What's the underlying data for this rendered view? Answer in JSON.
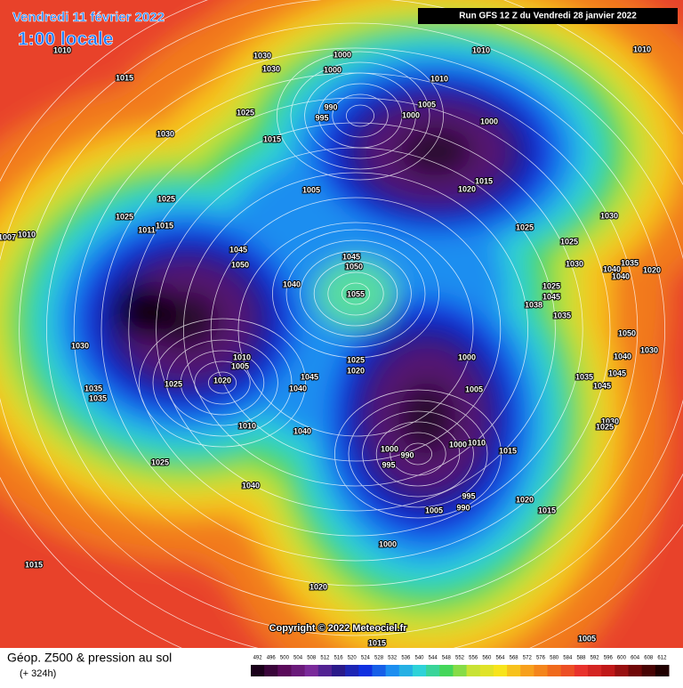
{
  "header": {
    "title": "Vendredi 11 février 2022",
    "time": "1:00 locale",
    "run": "Run GFS 12 Z du Vendredi 28 janvier 2022"
  },
  "footer": {
    "title": "Géop. Z500 & pression au sol",
    "lead": "(+ 324h)",
    "scale": [
      492,
      496,
      500,
      504,
      508,
      512,
      516,
      520,
      524,
      528,
      532,
      536,
      540,
      544,
      548,
      552,
      556,
      560,
      564,
      568,
      572,
      576,
      580,
      584,
      588,
      592,
      596,
      600,
      604,
      608,
      612
    ]
  },
  "copyright": "Copyright © 2022 Meteociel.fr",
  "isobar_labels": [
    1010,
    1015,
    1030,
    1030,
    1030,
    1000,
    1000,
    1025,
    1015,
    1025,
    1025,
    1011,
    1015,
    1010,
    1007,
    1045,
    1050,
    1040,
    1045,
    1050,
    1055,
    1045,
    1040,
    1040,
    1010,
    1005,
    1010,
    1025,
    1030,
    1035,
    1035,
    1025,
    1040,
    1015,
    1020,
    1000,
    1020,
    1025,
    1000,
    1005,
    1000,
    990,
    995,
    1000,
    1010,
    1015,
    1005,
    995,
    990,
    1020,
    1015,
    1010,
    1010,
    1010,
    1005,
    1000,
    1000,
    1015,
    1020,
    1005,
    1025,
    1025,
    1030,
    1030,
    1025,
    1045,
    1038,
    1035,
    1040,
    1035,
    1020,
    1040,
    1050,
    1040,
    1030,
    1045,
    1035,
    1045,
    1030,
    1025,
    1015,
    1005,
    990,
    995,
    1020
  ]
}
